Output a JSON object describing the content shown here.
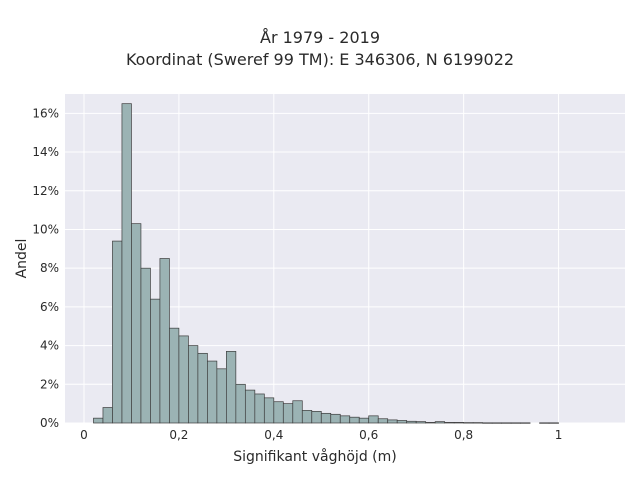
{
  "chart_data": {
    "type": "bar",
    "title": "År 1979 - 2019",
    "subtitle": "Koordinat (Sweref 99 TM): E 346306, N 6199022",
    "xlabel": "Signifikant våghöjd (m)",
    "ylabel": "Andel",
    "xlim": [
      -0.04,
      1.14
    ],
    "ylim": [
      0,
      0.17
    ],
    "x_ticks": [
      0,
      0.2,
      0.4,
      0.6,
      0.8,
      1.0
    ],
    "x_tick_labels": [
      "0",
      "0,2",
      "0,4",
      "0,6",
      "0,8",
      "1"
    ],
    "y_ticks": [
      0,
      0.02,
      0.04,
      0.06,
      0.08,
      0.1,
      0.12,
      0.14,
      0.16
    ],
    "y_tick_labels": [
      "0%",
      "2%",
      "4%",
      "6%",
      "8%",
      "10%",
      "12%",
      "14%",
      "16%"
    ],
    "bin_width": 0.02,
    "bin_starts": [
      0.02,
      0.04,
      0.06,
      0.08,
      0.1,
      0.12,
      0.14,
      0.16,
      0.18,
      0.2,
      0.22,
      0.24,
      0.26,
      0.28,
      0.3,
      0.32,
      0.34,
      0.36,
      0.38,
      0.4,
      0.42,
      0.44,
      0.46,
      0.48,
      0.5,
      0.52,
      0.54,
      0.56,
      0.58,
      0.6,
      0.62,
      0.64,
      0.66,
      0.68,
      0.7,
      0.72,
      0.74,
      0.76,
      0.78,
      0.8,
      0.82,
      0.84,
      0.86,
      0.88,
      0.9,
      0.92,
      0.96,
      0.98
    ],
    "values": [
      0.0025,
      0.008,
      0.094,
      0.165,
      0.103,
      0.08,
      0.064,
      0.085,
      0.049,
      0.045,
      0.04,
      0.036,
      0.032,
      0.028,
      0.037,
      0.02,
      0.017,
      0.015,
      0.013,
      0.011,
      0.01,
      0.0115,
      0.0065,
      0.006,
      0.005,
      0.0045,
      0.0037,
      0.003,
      0.0025,
      0.0037,
      0.0022,
      0.0016,
      0.0013,
      0.0009,
      0.0007,
      0.0003,
      0.0007,
      0.0003,
      0.0003,
      0.0002,
      0.0002,
      0.0001,
      0.0001,
      0.0001,
      0.0001,
      0.0001,
      0.0001,
      0.0001
    ],
    "grid": true,
    "colors": {
      "bar_fill": "#9bb3b4",
      "bar_edge": "#3c3c3c",
      "plot_background": "#eaeaf2",
      "grid": "#ffffff",
      "text": "#2a2a2a"
    }
  }
}
